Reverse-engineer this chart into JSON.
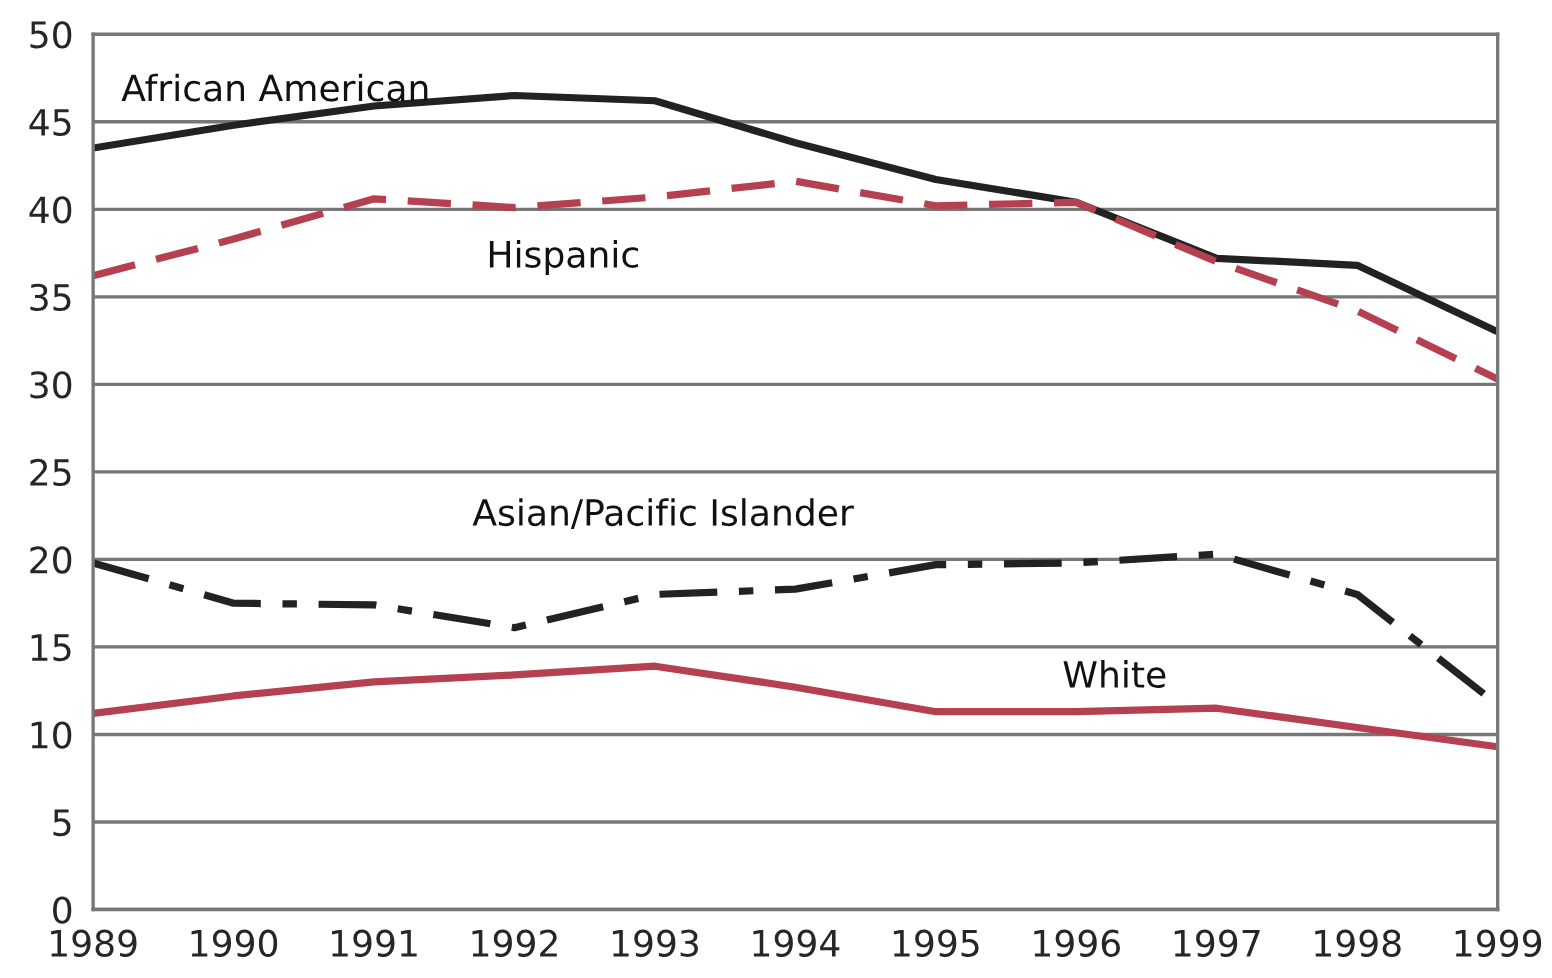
{
  "chart_data": {
    "type": "line",
    "x": [
      1989,
      1990,
      1991,
      1992,
      1993,
      1994,
      1995,
      1996,
      1997,
      1998,
      1999
    ],
    "series": [
      {
        "name": "African American",
        "color": "#222222",
        "line_style": "solid",
        "values": [
          43.5,
          44.8,
          45.9,
          46.5,
          46.2,
          43.8,
          41.7,
          40.4,
          37.2,
          36.8,
          33
        ]
      },
      {
        "name": "Hispanic",
        "color": "#b5404f",
        "line_style": "dashed",
        "values": [
          36.2,
          38.3,
          40.6,
          40.1,
          40.7,
          41.6,
          40.2,
          40.4,
          37,
          34.2,
          30.3
        ]
      },
      {
        "name": "Asian/Pacific Islander",
        "color": "#222222",
        "line_style": "dashdot",
        "values": [
          19.8,
          17.5,
          17.4,
          16.1,
          18,
          18.3,
          19.7,
          19.8,
          20.3,
          18,
          11.7
        ]
      },
      {
        "name": "White",
        "color": "#b5404f",
        "line_style": "solid",
        "values": [
          11.2,
          12.2,
          13,
          13.4,
          13.9,
          12.7,
          11.3,
          11.3,
          11.5,
          10.4,
          9.3
        ]
      }
    ],
    "xlim": [
      1989,
      1999
    ],
    "xticks": [
      1989,
      1990,
      1991,
      1992,
      1993,
      1994,
      1995,
      1996,
      1997,
      1998,
      1999
    ],
    "ylim": [
      0,
      50
    ],
    "yticks": [
      0,
      5,
      10,
      15,
      20,
      25,
      30,
      35,
      40,
      45,
      50
    ],
    "grid": "y",
    "marker": "none",
    "legend": false
  }
}
